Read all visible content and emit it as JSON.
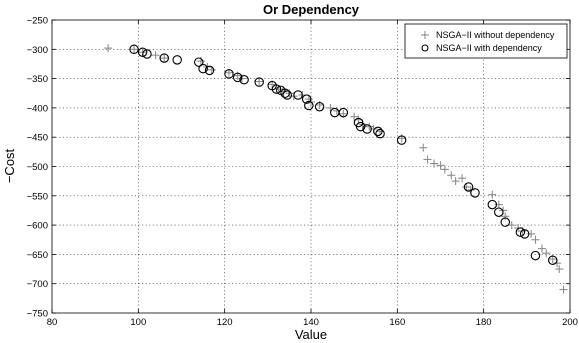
{
  "chart_data": {
    "type": "scatter",
    "title": "Or Dependency",
    "xlabel": "Value",
    "ylabel": "−Cost",
    "xlim": [
      80,
      200
    ],
    "ylim": [
      -750,
      -250
    ],
    "xticks": [
      "80",
      "100",
      "120",
      "140",
      "160",
      "180",
      "200"
    ],
    "yticks": [
      "−250",
      "−300",
      "−350",
      "−400",
      "−450",
      "−500",
      "−550",
      "−600",
      "−650",
      "−700",
      "−750"
    ],
    "grid": true,
    "legend_position": "top-right",
    "series": [
      {
        "name": "NSGA−II without dependency",
        "marker": "plus",
        "color": "#8c8c8c",
        "x": [
          93,
          99,
          101,
          104,
          106,
          114.5,
          116,
          117,
          121,
          123,
          124,
          128,
          131,
          132.5,
          133.5,
          135,
          136,
          138,
          139.5,
          140,
          142,
          144.5,
          146,
          147.5,
          150,
          151,
          152,
          153.5,
          154.5,
          156,
          161,
          166,
          167,
          168.5,
          170,
          171,
          172.5,
          173.5,
          175,
          176,
          177,
          182,
          183.5,
          184.5,
          185,
          186.5,
          188,
          189,
          191,
          192,
          193.5,
          194.5,
          196,
          197,
          197.5,
          198.5
        ],
        "y": [
          -298,
          -300,
          -305,
          -310,
          -315,
          -320,
          -330,
          -335,
          -340,
          -345,
          -350,
          -355,
          -360,
          -368,
          -372,
          -375,
          -380,
          -378,
          -385,
          -390,
          -395,
          -400,
          -405,
          -410,
          -415,
          -420,
          -428,
          -432,
          -436,
          -440,
          -452,
          -468,
          -488,
          -495,
          -498,
          -505,
          -515,
          -525,
          -520,
          -535,
          -540,
          -548,
          -565,
          -575,
          -585,
          -600,
          -605,
          -610,
          -615,
          -625,
          -640,
          -648,
          -658,
          -665,
          -675,
          -710
        ]
      },
      {
        "name": "NSGA−II with dependency",
        "marker": "circle",
        "color": "#000000",
        "x": [
          99,
          101,
          102,
          106,
          109,
          114,
          115,
          116.5,
          121,
          123,
          124.5,
          128,
          131,
          132,
          133,
          134,
          134.5,
          137,
          139,
          139.5,
          142,
          145.5,
          147.5,
          151,
          151.5,
          153,
          155.5,
          156,
          161,
          176.5,
          178,
          182,
          183.5,
          185,
          188.5,
          189.5,
          192,
          196
        ],
        "y": [
          -300,
          -305,
          -308,
          -315,
          -318,
          -322,
          -333,
          -336,
          -342,
          -348,
          -352,
          -356,
          -362,
          -368,
          -370,
          -375,
          -378,
          -378,
          -385,
          -396,
          -398,
          -408,
          -408,
          -425,
          -432,
          -436,
          -440,
          -444,
          -455,
          -535,
          -545,
          -565,
          -578,
          -595,
          -612,
          -615,
          -652,
          -660
        ]
      }
    ]
  }
}
